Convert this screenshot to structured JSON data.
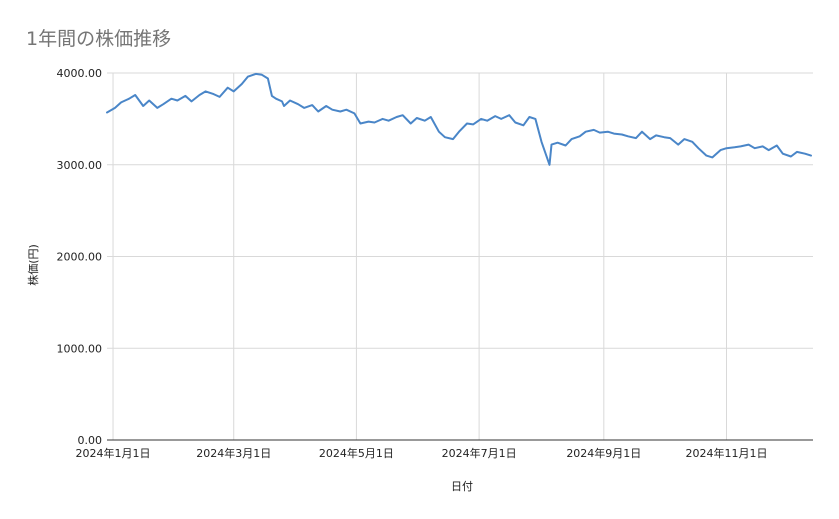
{
  "chart_data": {
    "type": "line",
    "title": "1年間の株価推移",
    "xlabel": "日付",
    "ylabel": "株価(円)",
    "ylim": [
      0,
      4000
    ],
    "yticks": [
      0,
      1000,
      2000,
      3000,
      4000
    ],
    "ytick_labels": [
      "0.00",
      "1000.00",
      "2000.00",
      "3000.00",
      "4000.00"
    ],
    "xlim": [
      "2023-12-29",
      "2024-12-14"
    ],
    "xticks": [
      "2024-01-01",
      "2024-03-01",
      "2024-05-01",
      "2024-07-01",
      "2024-09-01",
      "2024-11-01"
    ],
    "xtick_labels": [
      "2024年1月1日",
      "2024年3月1日",
      "2024年5月1日",
      "2024年7月1日",
      "2024年9月1日",
      "2024年11月1日"
    ],
    "grid": true,
    "line_color": "#4a86c8",
    "series": [
      {
        "x": [
          "2023-12-29",
          "2024-01-02",
          "2024-01-05",
          "2024-01-09",
          "2024-01-12",
          "2024-01-16",
          "2024-01-19",
          "2024-01-23",
          "2024-01-26",
          "2024-01-30",
          "2024-02-02",
          "2024-02-06",
          "2024-02-09",
          "2024-02-13",
          "2024-02-16",
          "2024-02-20",
          "2024-02-23",
          "2024-02-27",
          "2024-03-01",
          "2024-03-05",
          "2024-03-08",
          "2024-03-12",
          "2024-03-15",
          "2024-03-18",
          "2024-03-20",
          "2024-03-22",
          "2024-03-25",
          "2024-03-26",
          "2024-03-29",
          "2024-04-02",
          "2024-04-05",
          "2024-04-09",
          "2024-04-12",
          "2024-04-16",
          "2024-04-19",
          "2024-04-23",
          "2024-04-26",
          "2024-04-30",
          "2024-05-03",
          "2024-05-07",
          "2024-05-10",
          "2024-05-14",
          "2024-05-17",
          "2024-05-21",
          "2024-05-24",
          "2024-05-28",
          "2024-05-31",
          "2024-06-04",
          "2024-06-07",
          "2024-06-11",
          "2024-06-14",
          "2024-06-18",
          "2024-06-21",
          "2024-06-25",
          "2024-06-28",
          "2024-07-02",
          "2024-07-05",
          "2024-07-09",
          "2024-07-12",
          "2024-07-16",
          "2024-07-19",
          "2024-07-23",
          "2024-07-26",
          "2024-07-29",
          "2024-08-01",
          "2024-08-05",
          "2024-08-06",
          "2024-08-09",
          "2024-08-13",
          "2024-08-16",
          "2024-08-20",
          "2024-08-23",
          "2024-08-27",
          "2024-08-30",
          "2024-09-03",
          "2024-09-06",
          "2024-09-10",
          "2024-09-13",
          "2024-09-17",
          "2024-09-20",
          "2024-09-24",
          "2024-09-27",
          "2024-10-01",
          "2024-10-04",
          "2024-10-08",
          "2024-10-11",
          "2024-10-15",
          "2024-10-18",
          "2024-10-22",
          "2024-10-25",
          "2024-10-29",
          "2024-11-01",
          "2024-11-05",
          "2024-11-08",
          "2024-11-12",
          "2024-11-15",
          "2024-11-19",
          "2024-11-22",
          "2024-11-26",
          "2024-11-29",
          "2024-12-03",
          "2024-12-06",
          "2024-12-10",
          "2024-12-13"
        ],
        "values": [
          3570,
          3620,
          3680,
          3720,
          3760,
          3640,
          3700,
          3620,
          3660,
          3720,
          3700,
          3750,
          3690,
          3760,
          3800,
          3770,
          3740,
          3840,
          3800,
          3880,
          3960,
          3990,
          3980,
          3940,
          3750,
          3720,
          3690,
          3640,
          3700,
          3660,
          3620,
          3650,
          3580,
          3640,
          3600,
          3580,
          3600,
          3560,
          3450,
          3470,
          3460,
          3500,
          3480,
          3520,
          3540,
          3450,
          3510,
          3480,
          3520,
          3360,
          3300,
          3280,
          3360,
          3450,
          3440,
          3500,
          3480,
          3530,
          3500,
          3540,
          3460,
          3430,
          3520,
          3500,
          3250,
          3000,
          3220,
          3240,
          3210,
          3280,
          3310,
          3360,
          3380,
          3350,
          3360,
          3340,
          3330,
          3310,
          3290,
          3360,
          3280,
          3320,
          3300,
          3290,
          3220,
          3280,
          3250,
          3180,
          3100,
          3080,
          3160,
          3180,
          3190,
          3200,
          3220,
          3180,
          3200,
          3160,
          3210,
          3120,
          3090,
          3140,
          3120,
          3100
        ]
      }
    ]
  }
}
